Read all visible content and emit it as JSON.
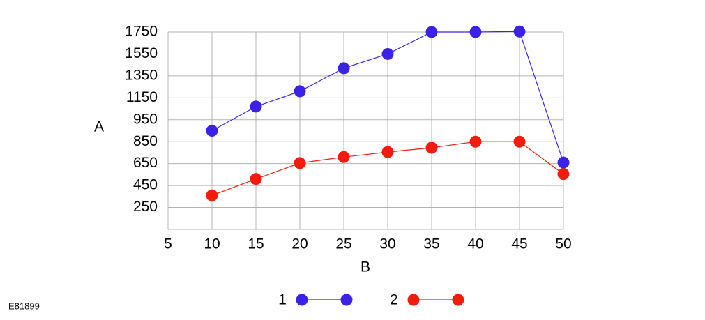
{
  "chart_data": {
    "type": "line",
    "code": "E81899",
    "x_label": "B",
    "y_label": "A",
    "x": [
      10,
      15,
      20,
      25,
      30,
      35,
      40,
      45,
      50
    ],
    "series": [
      {
        "name": "1",
        "color": "#3a22e6",
        "values": [
          900,
          1070,
          1210,
          1420,
          1550,
          1750,
          1750,
          1755,
          660
        ]
      },
      {
        "name": "2",
        "color": "#f01c0c",
        "values": [
          360,
          510,
          655,
          710,
          755,
          795,
          850,
          850,
          555
        ]
      }
    ],
    "xlim": [
      5,
      50
    ],
    "xticks": [
      5,
      10,
      15,
      20,
      25,
      30,
      35,
      40,
      45,
      50
    ],
    "ylim": [
      50,
      1750
    ],
    "yticks": [
      250,
      450,
      650,
      850,
      950,
      1150,
      1350,
      1550,
      1750
    ],
    "grid": true,
    "legend": "bottom"
  }
}
